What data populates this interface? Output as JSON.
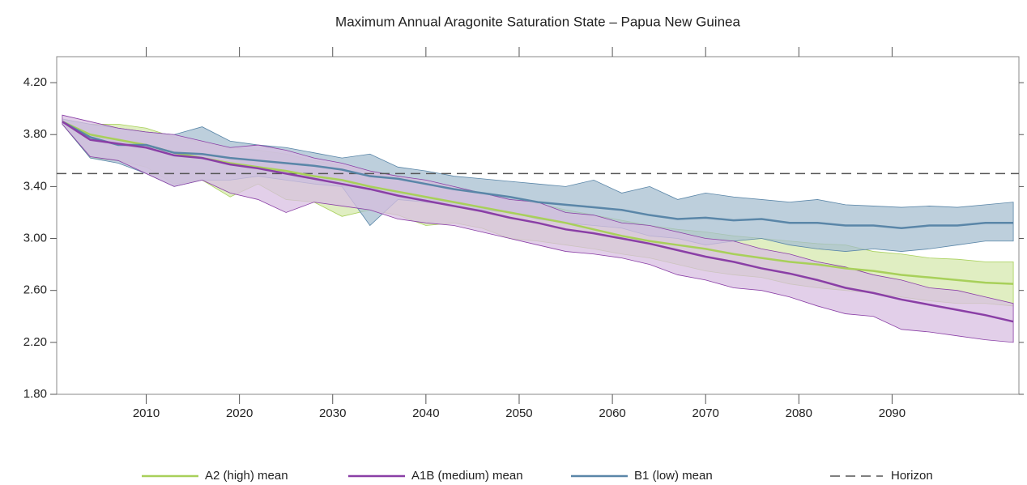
{
  "chart_data": {
    "type": "line",
    "title": "Maximum Annual Aragonite Saturation State – Papua New Guinea",
    "x": [
      2001,
      2004,
      2007,
      2010,
      2013,
      2016,
      2019,
      2022,
      2025,
      2028,
      2031,
      2034,
      2037,
      2040,
      2043,
      2046,
      2049,
      2052,
      2055,
      2058,
      2061,
      2064,
      2067,
      2070,
      2073,
      2076,
      2079,
      2082,
      2085,
      2088,
      2091,
      2094,
      2097,
      2100,
      2103
    ],
    "series": [
      {
        "name": "A2 (high) mean",
        "color": "#a8d05a",
        "band_color": "#d6e8ad",
        "values": [
          3.9,
          3.8,
          3.76,
          3.72,
          3.66,
          3.62,
          3.58,
          3.55,
          3.52,
          3.48,
          3.45,
          3.4,
          3.36,
          3.32,
          3.28,
          3.24,
          3.2,
          3.16,
          3.12,
          3.07,
          3.02,
          2.98,
          2.95,
          2.92,
          2.88,
          2.85,
          2.82,
          2.8,
          2.77,
          2.75,
          2.72,
          2.7,
          2.68,
          2.66,
          2.65
        ],
        "upper": [
          3.92,
          3.88,
          3.88,
          3.85,
          3.78,
          3.74,
          3.7,
          3.68,
          3.65,
          3.6,
          3.56,
          3.52,
          3.48,
          3.44,
          3.4,
          3.35,
          3.3,
          3.27,
          3.22,
          3.18,
          3.14,
          3.1,
          3.07,
          3.05,
          3.02,
          3.0,
          2.98,
          2.96,
          2.95,
          2.9,
          2.88,
          2.85,
          2.84,
          2.82,
          2.82
        ],
        "lower": [
          3.88,
          3.62,
          3.6,
          3.55,
          3.42,
          3.45,
          3.32,
          3.42,
          3.3,
          3.28,
          3.17,
          3.22,
          3.18,
          3.1,
          3.12,
          3.08,
          3.0,
          2.98,
          2.95,
          2.92,
          2.88,
          2.85,
          2.8,
          2.75,
          2.72,
          2.7,
          2.65,
          2.62,
          2.6,
          2.58,
          2.55,
          2.52,
          2.5,
          2.5,
          2.48
        ]
      },
      {
        "name": "A1B (medium) mean",
        "color": "#8a3fa6",
        "band_color": "#d8bfe2",
        "values": [
          3.9,
          3.76,
          3.73,
          3.7,
          3.64,
          3.62,
          3.57,
          3.54,
          3.5,
          3.46,
          3.42,
          3.38,
          3.33,
          3.29,
          3.25,
          3.21,
          3.16,
          3.12,
          3.07,
          3.04,
          3.0,
          2.96,
          2.91,
          2.86,
          2.82,
          2.77,
          2.73,
          2.68,
          2.62,
          2.58,
          2.53,
          2.49,
          2.45,
          2.41,
          2.36
        ],
        "upper": [
          3.95,
          3.9,
          3.85,
          3.82,
          3.8,
          3.75,
          3.7,
          3.72,
          3.68,
          3.62,
          3.58,
          3.52,
          3.48,
          3.45,
          3.4,
          3.35,
          3.3,
          3.28,
          3.2,
          3.18,
          3.12,
          3.1,
          3.05,
          3.0,
          2.98,
          2.92,
          2.88,
          2.82,
          2.78,
          2.72,
          2.68,
          2.62,
          2.6,
          2.55,
          2.5
        ],
        "lower": [
          3.88,
          3.63,
          3.6,
          3.5,
          3.4,
          3.45,
          3.35,
          3.3,
          3.2,
          3.28,
          3.25,
          3.22,
          3.15,
          3.12,
          3.1,
          3.05,
          3.0,
          2.95,
          2.9,
          2.88,
          2.85,
          2.8,
          2.72,
          2.68,
          2.62,
          2.6,
          2.55,
          2.48,
          2.42,
          2.4,
          2.3,
          2.28,
          2.25,
          2.22,
          2.2
        ]
      },
      {
        "name": "B1 (low) mean",
        "color": "#5a86a8",
        "band_color": "#a7bfd0",
        "values": [
          3.9,
          3.78,
          3.72,
          3.72,
          3.66,
          3.65,
          3.62,
          3.6,
          3.58,
          3.56,
          3.53,
          3.48,
          3.46,
          3.42,
          3.38,
          3.35,
          3.32,
          3.28,
          3.26,
          3.24,
          3.22,
          3.18,
          3.15,
          3.16,
          3.14,
          3.15,
          3.12,
          3.12,
          3.1,
          3.1,
          3.08,
          3.1,
          3.1,
          3.12,
          3.12
        ],
        "upper": [
          3.92,
          3.88,
          3.85,
          3.82,
          3.8,
          3.86,
          3.75,
          3.72,
          3.7,
          3.66,
          3.62,
          3.65,
          3.55,
          3.52,
          3.48,
          3.46,
          3.44,
          3.42,
          3.4,
          3.45,
          3.35,
          3.4,
          3.3,
          3.35,
          3.32,
          3.3,
          3.28,
          3.3,
          3.26,
          3.25,
          3.24,
          3.25,
          3.24,
          3.26,
          3.28
        ],
        "lower": [
          3.88,
          3.62,
          3.58,
          3.5,
          3.4,
          3.45,
          3.45,
          3.48,
          3.45,
          3.42,
          3.4,
          3.1,
          3.3,
          3.28,
          3.25,
          3.22,
          3.2,
          3.15,
          3.12,
          3.1,
          3.08,
          3.02,
          3.0,
          2.95,
          2.98,
          3.0,
          2.95,
          2.92,
          2.9,
          2.92,
          2.9,
          2.92,
          2.95,
          2.98,
          2.98
        ]
      }
    ],
    "horizon": {
      "name": "Horizon",
      "value": 3.5,
      "color": "#555555"
    },
    "xlim": [
      2000.4,
      2103.6
    ],
    "ylim": [
      1.8,
      4.4
    ],
    "xticks": [
      2010,
      2020,
      2030,
      2040,
      2050,
      2060,
      2070,
      2080,
      2090
    ],
    "yticks": [
      {
        "value": 1.8,
        "label": "1.80"
      },
      {
        "value": 2.2,
        "label": "2.20"
      },
      {
        "value": 2.6,
        "label": "2.60"
      },
      {
        "value": 3.0,
        "label": "3.00"
      },
      {
        "value": 3.4,
        "label": "3.40"
      },
      {
        "value": 3.8,
        "label": "3.80"
      },
      {
        "value": 4.2,
        "label": "4.20"
      }
    ],
    "legend": "bottom"
  }
}
